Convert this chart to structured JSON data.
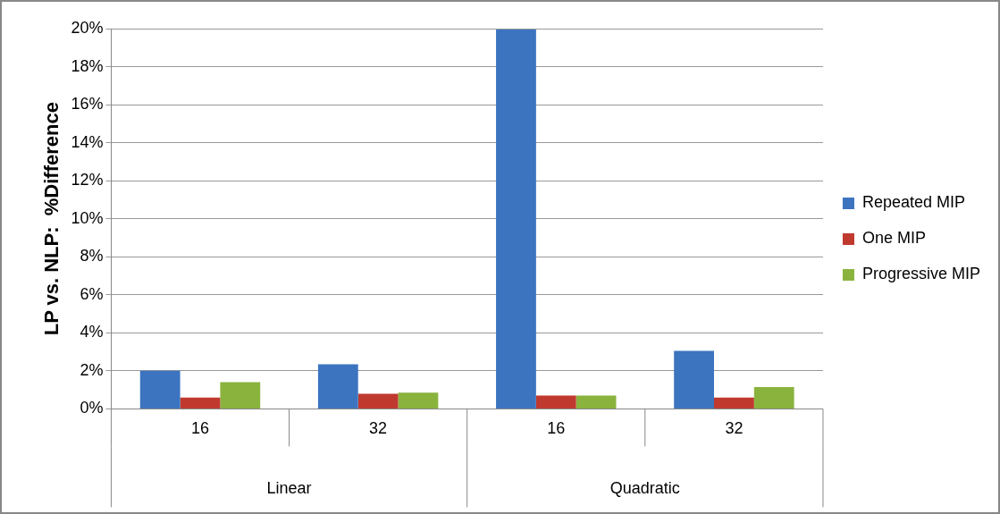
{
  "chart_data": {
    "type": "bar",
    "ylabel": "LP vs. NLP:  %Difference",
    "categories": [
      "16",
      "32",
      "16",
      "32"
    ],
    "annotations": [
      "Linear",
      "Quadratic"
    ],
    "series": [
      {
        "name": "Repeated MIP",
        "color": "#3c74bf",
        "values": [
          2.0,
          2.35,
          19.95,
          3.05
        ]
      },
      {
        "name": "One MIP",
        "color": "#c0392f",
        "values": [
          0.6,
          0.8,
          0.7,
          0.6
        ]
      },
      {
        "name": "Progressive MIP",
        "color": "#8ab33e",
        "values": [
          1.4,
          0.85,
          0.7,
          1.15
        ]
      }
    ],
    "ylim": [
      0,
      20
    ],
    "yticks": [
      {
        "value": 0,
        "label": "0%"
      },
      {
        "value": 2,
        "label": "2%"
      },
      {
        "value": 4,
        "label": "4%"
      },
      {
        "value": 6,
        "label": "6%"
      },
      {
        "value": 8,
        "label": "8%"
      },
      {
        "value": 10,
        "label": "10%"
      },
      {
        "value": 12,
        "label": "12%"
      },
      {
        "value": 14,
        "label": "14%"
      },
      {
        "value": 16,
        "label": "16%"
      },
      {
        "value": 18,
        "label": "18%"
      },
      {
        "value": 20,
        "label": "20%"
      }
    ],
    "grid": "y",
    "legend": "right"
  }
}
